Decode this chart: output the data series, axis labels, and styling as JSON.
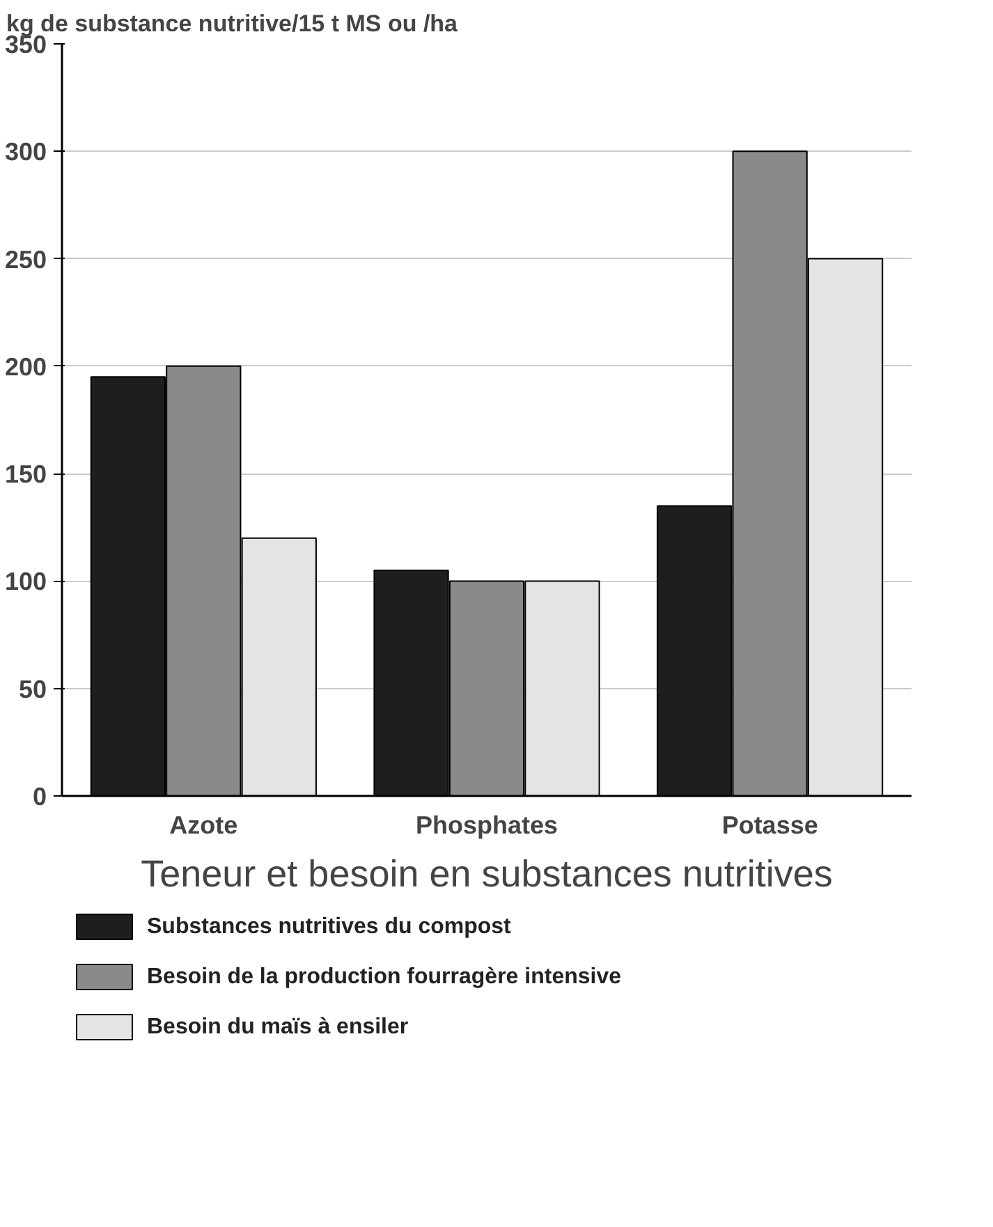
{
  "chart_data": {
    "type": "bar",
    "title": "Teneur et besoin en substances nutritives",
    "ylabel": "kg de substance nutritive/15 t MS ou /ha",
    "categories": [
      "Azote",
      "Phosphates",
      "Potasse"
    ],
    "series": [
      {
        "name": "Substances nutritives du compost",
        "color": "#1e1e1e",
        "values": [
          195,
          105,
          135
        ]
      },
      {
        "name": "Besoin de la production fourragère intensive",
        "color": "#8a8a8a",
        "values": [
          200,
          100,
          300
        ]
      },
      {
        "name": "Besoin du maïs à ensiler",
        "color": "#e4e4e4",
        "values": [
          120,
          100,
          250
        ]
      }
    ],
    "ylim": [
      0,
      350
    ],
    "yticks": [
      0,
      50,
      100,
      150,
      200,
      250,
      300,
      350
    ],
    "grid": "y",
    "legend": "bottom"
  }
}
